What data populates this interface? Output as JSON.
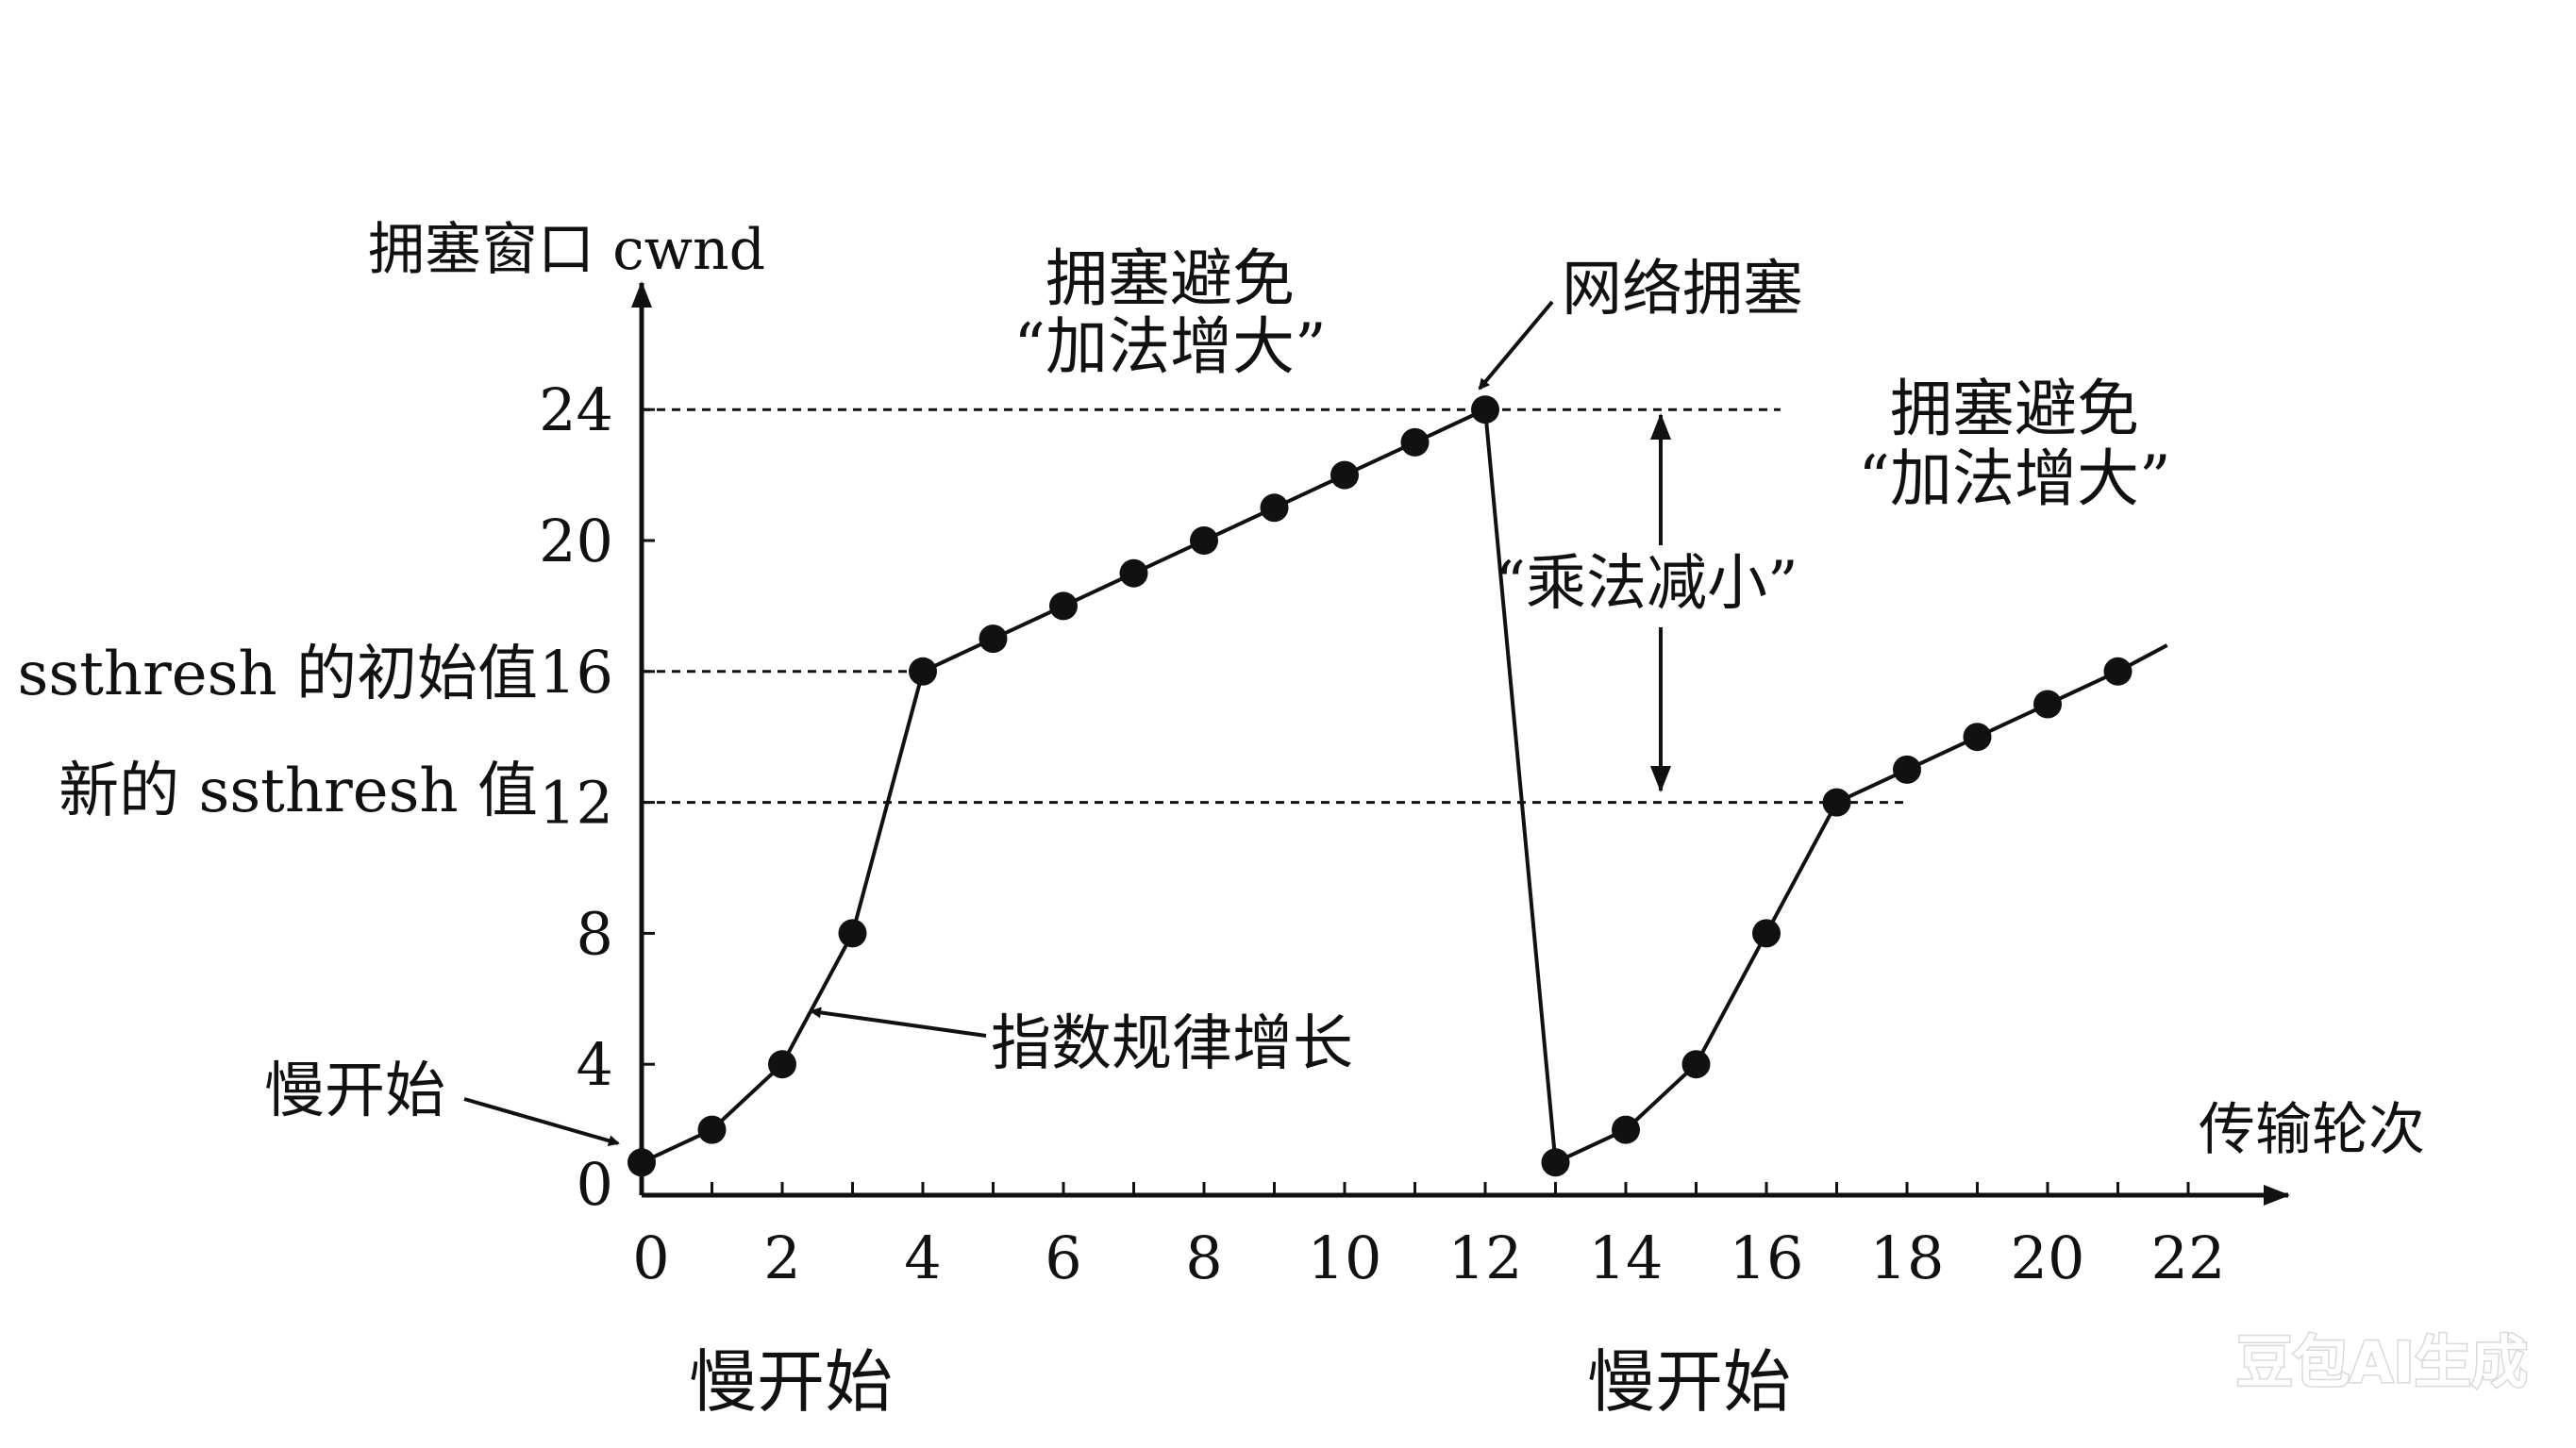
{
  "chart_data": {
    "type": "line",
    "ylabel": "拥塞窗口 cwnd",
    "xlabel": "传输轮次",
    "xlim": [
      0,
      23
    ],
    "ylim": [
      0,
      26
    ],
    "x_ticks": [
      0,
      2,
      4,
      6,
      8,
      10,
      12,
      14,
      16,
      18,
      20,
      22
    ],
    "y_ticks": [
      0,
      4,
      8,
      12,
      16,
      20,
      24
    ],
    "grid": false,
    "series": [
      {
        "points": [
          [
            0,
            1
          ],
          [
            1,
            2
          ],
          [
            2,
            4
          ],
          [
            3,
            8
          ],
          [
            4,
            16
          ],
          [
            5,
            17
          ],
          [
            6,
            18
          ],
          [
            7,
            19
          ],
          [
            8,
            20
          ],
          [
            9,
            21
          ],
          [
            10,
            22
          ],
          [
            11,
            23
          ],
          [
            12,
            24
          ],
          [
            13,
            1
          ],
          [
            14,
            2
          ],
          [
            15,
            4
          ],
          [
            16,
            8
          ],
          [
            17,
            12
          ],
          [
            18,
            13
          ],
          [
            19,
            14
          ],
          [
            20,
            15
          ],
          [
            21,
            16
          ]
        ],
        "extension": [
          21,
          16,
          21.7,
          16.8
        ]
      }
    ],
    "reference_lines": [
      {
        "y": 24,
        "x_end": 16.2
      },
      {
        "y": 16,
        "x_end": 4
      },
      {
        "y": 12,
        "x_end": 18
      }
    ],
    "left_labels": [
      {
        "text": "ssthresh 的初始值",
        "y": 16
      },
      {
        "text": "新的 ssthresh 值",
        "y": 12
      }
    ],
    "annotations": {
      "avoid_title_1": "拥塞避免",
      "avoid_sub_1": "“加法增大”",
      "avoid_title_2": "拥塞避免",
      "avoid_sub_2": "“加法增大”",
      "congestion": "网络拥塞",
      "multiplicative": "“乘法减小”",
      "exponential": "指数规律增长",
      "slow_start_pointer": "慢开始",
      "slow_start_phase_1": "慢开始",
      "slow_start_phase_2": "慢开始"
    }
  },
  "watermark": "豆包AI生成"
}
